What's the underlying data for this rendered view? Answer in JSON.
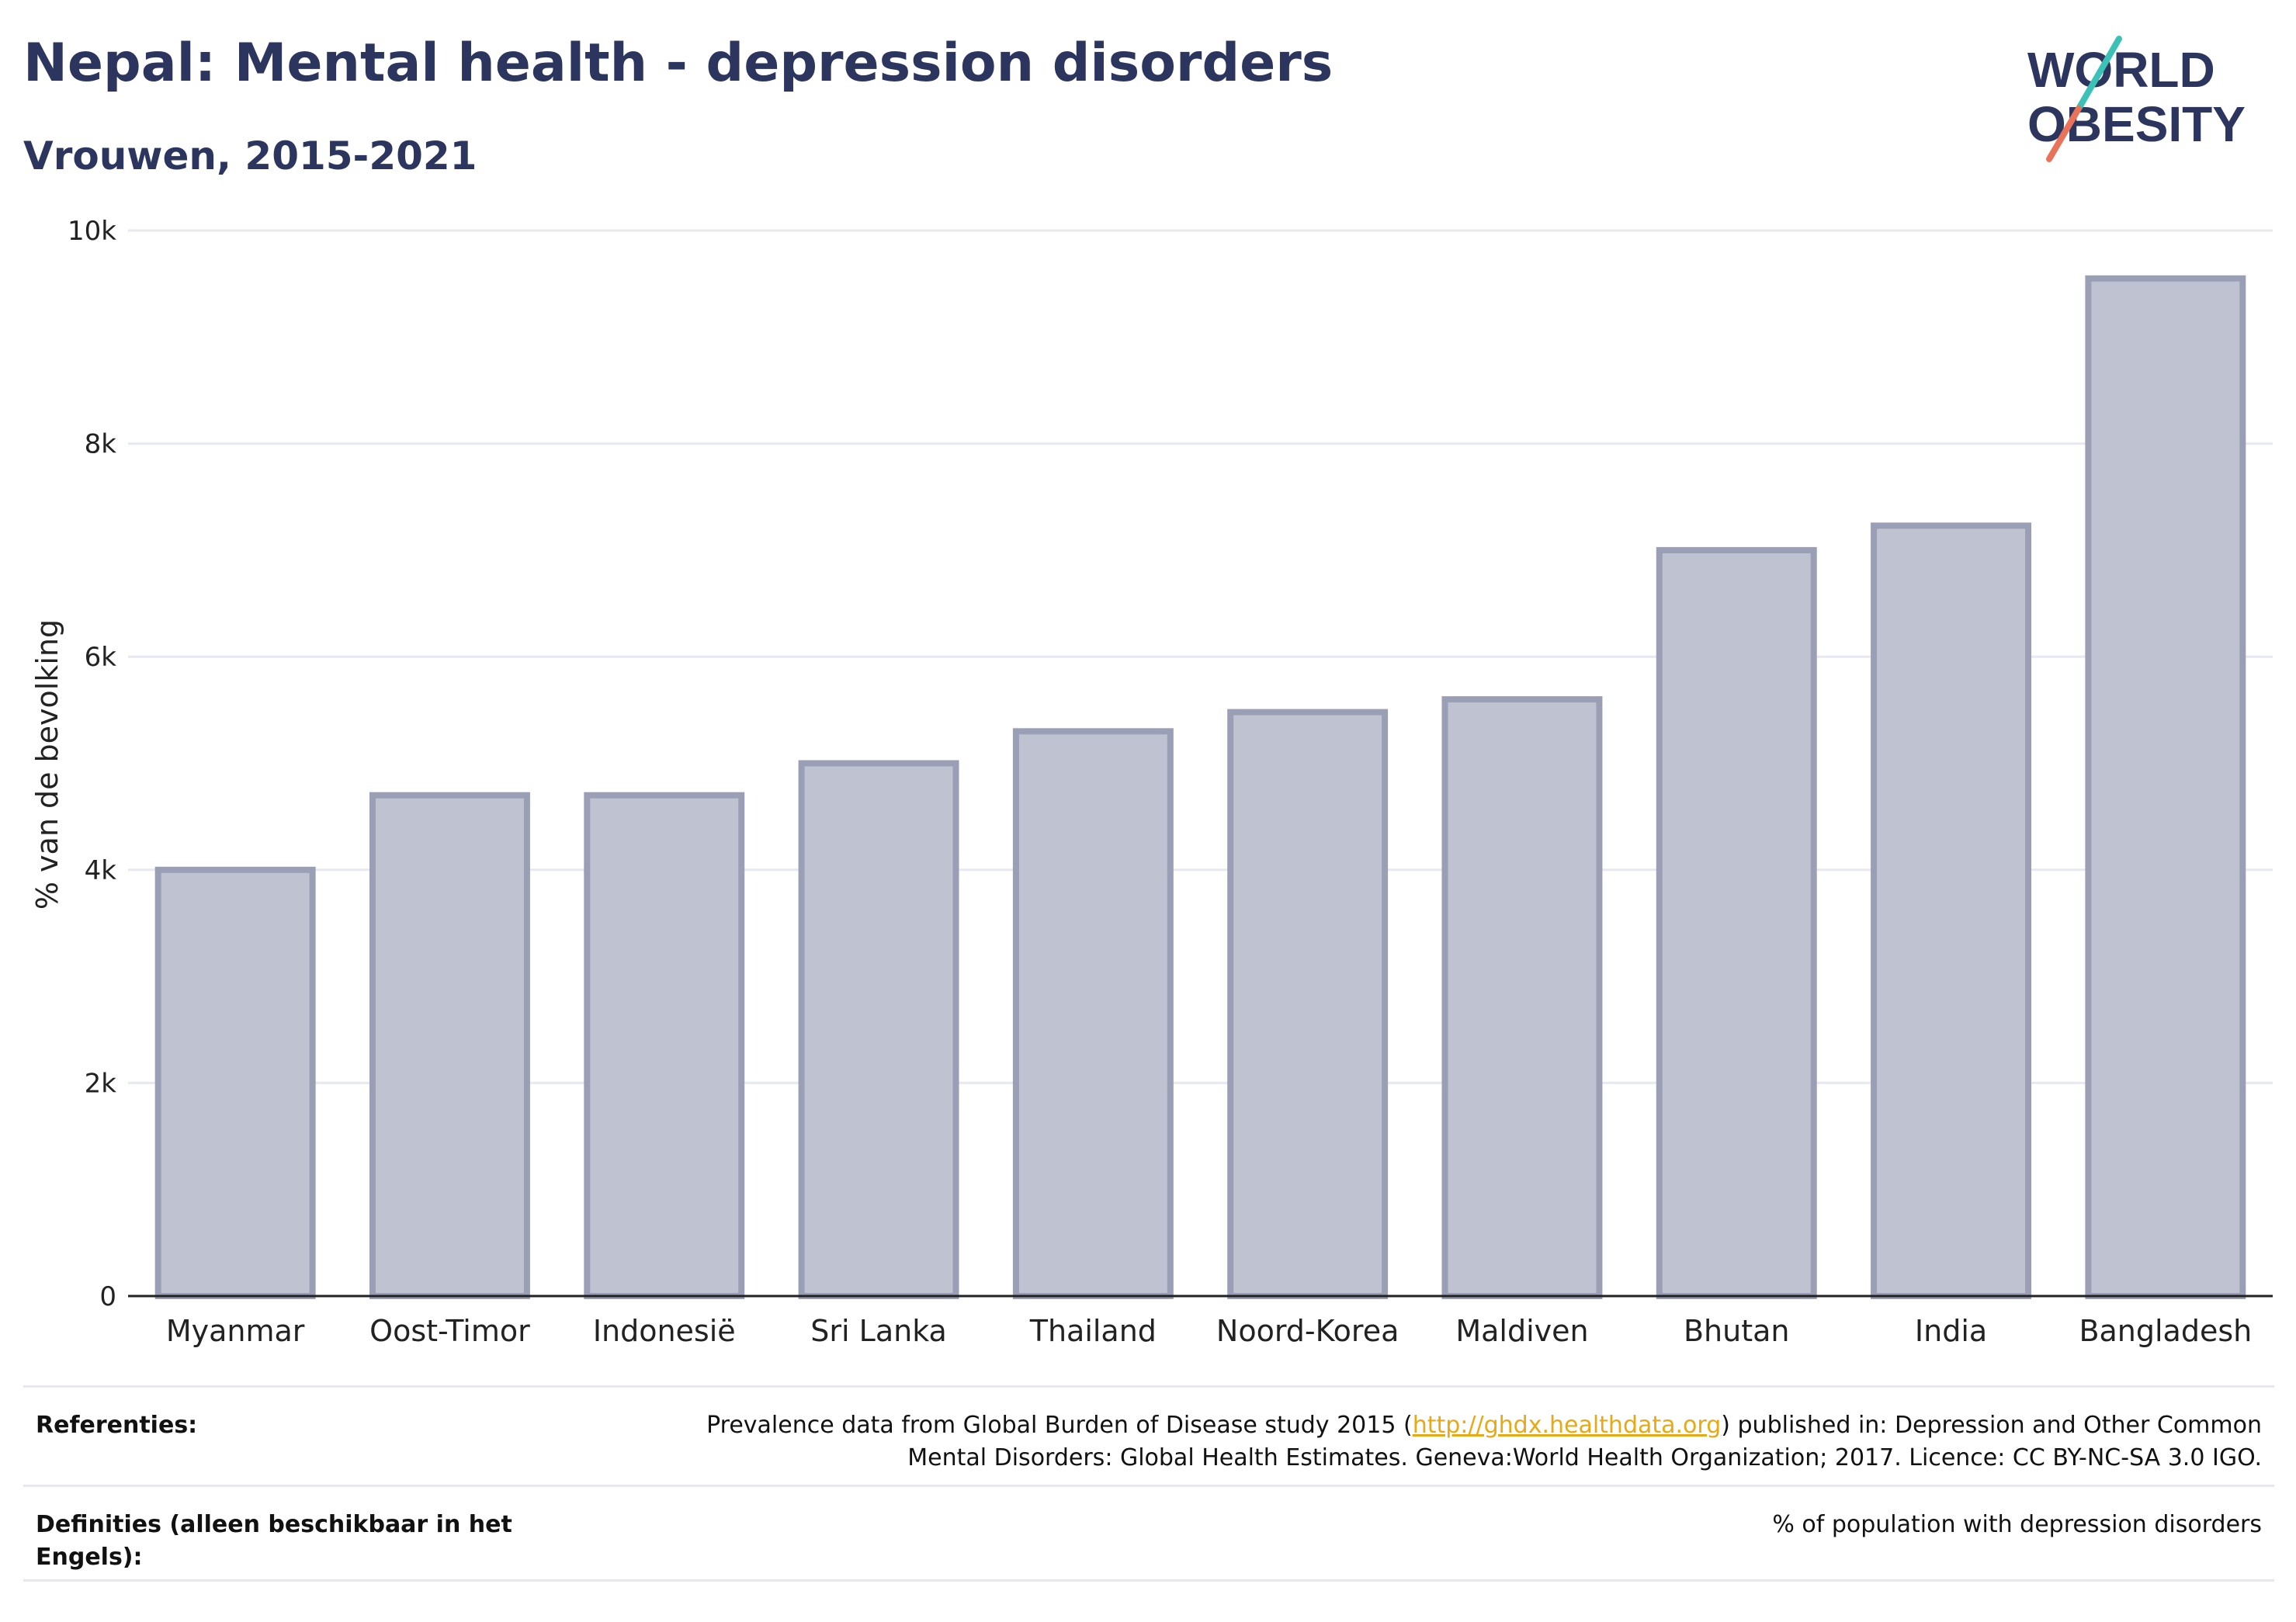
{
  "header": {
    "title": "Nepal: Mental health - depression disorders",
    "subtitle": "Vrouwen, 2015-2021"
  },
  "logo": {
    "line1": "WORLD",
    "line2": "OBESITY"
  },
  "colors": {
    "bar_fill": "#bfc2d0",
    "bar_stroke": "#9a9fb6",
    "title": "#2b355e",
    "gridline": "#e8e8f0",
    "link": "#e7a914",
    "logo_teal": "#3cc1b7",
    "logo_coral": "#e8735a"
  },
  "chart_data": {
    "type": "bar",
    "categories": [
      "Myanmar",
      "Oost-Timor",
      "Indonesië",
      "Sri Lanka",
      "Thailand",
      "Noord-Korea",
      "Maldiven",
      "Bhutan",
      "India",
      "Bangladesh"
    ],
    "values": [
      4000,
      4700,
      4700,
      5000,
      5300,
      5480,
      5600,
      7000,
      7230,
      9550
    ],
    "ylabel": "% van de bevolking",
    "xlabel": "",
    "ylim": [
      0,
      10000
    ],
    "yticks": [
      "0",
      "2k",
      "4k",
      "6k",
      "8k",
      "10k"
    ],
    "ytick_values": [
      0,
      2000,
      4000,
      6000,
      8000,
      10000
    ],
    "grid": true
  },
  "references": {
    "label": "Referenties:",
    "text_before": "Prevalence data from Global Burden of Disease study 2015 (",
    "link": "http://ghdx.healthdata.org",
    "text_after": ") published in: Depression and Other Common Mental Disorders: Global Health Estimates. Geneva:World Health Organization; 2017. Licence: CC BY-NC-SA 3.0 IGO."
  },
  "definitions": {
    "label": "Definities (alleen beschikbaar in het Engels):",
    "text": "% of population with depression disorders"
  }
}
